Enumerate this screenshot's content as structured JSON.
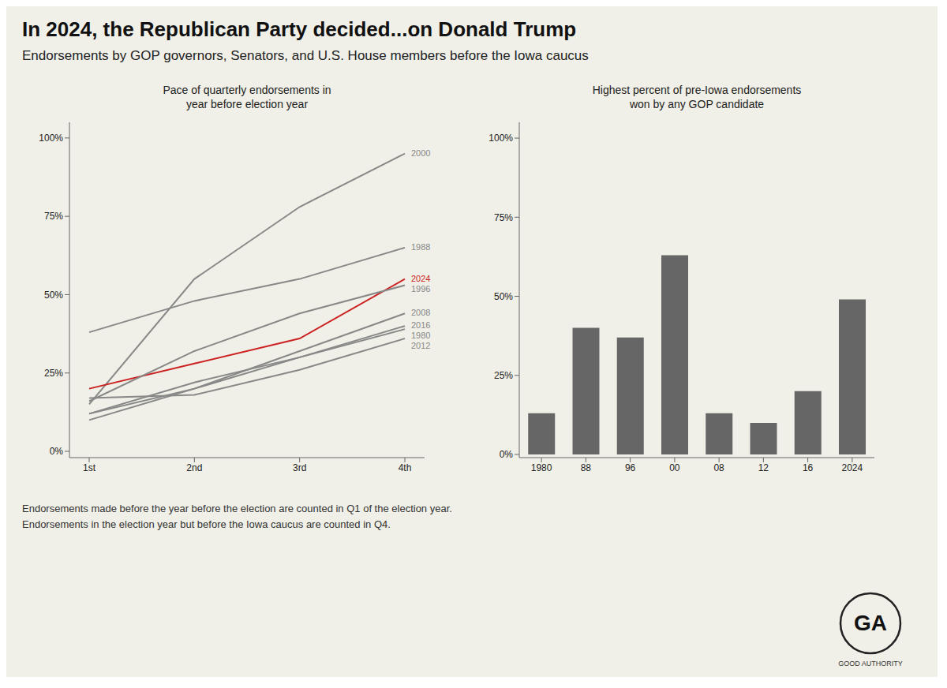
{
  "title": "In 2024, the Republican Party decided...on Donald Trump",
  "subtitle": "Endorsements by GOP governors, Senators, and U.S. House members before the Iowa caucus",
  "footnotes": [
    "Endorsements made before the year before the election are counted in Q1 of the election year.",
    "Endorsements in the election year but before the Iowa caucus are counted in Q4."
  ],
  "annotations": [
    "GA",
    "GOOD AUTHORITY"
  ],
  "chart_data": [
    {
      "type": "line",
      "title": "Pace of quarterly endorsements in\nyear before election year",
      "categories": [
        "1st",
        "2nd",
        "3rd",
        "4th"
      ],
      "series": [
        {
          "name": "2000",
          "color": "#888888",
          "values": [
            0.15,
            0.55,
            0.78,
            0.95
          ]
        },
        {
          "name": "1988",
          "color": "#888888",
          "values": [
            0.38,
            0.48,
            0.55,
            0.65
          ]
        },
        {
          "name": "2024",
          "color": "#cc2222",
          "values": [
            0.2,
            0.28,
            0.36,
            0.55
          ]
        },
        {
          "name": "1996",
          "color": "#888888",
          "values": [
            0.16,
            0.32,
            0.44,
            0.53
          ]
        },
        {
          "name": "2008",
          "color": "#888888",
          "values": [
            0.12,
            0.2,
            0.32,
            0.44
          ]
        },
        {
          "name": "2016",
          "color": "#888888",
          "values": [
            0.1,
            0.2,
            0.3,
            0.4
          ]
        },
        {
          "name": "1980",
          "color": "#888888",
          "values": [
            0.12,
            0.22,
            0.3,
            0.39
          ]
        },
        {
          "name": "2012",
          "color": "#888888",
          "values": [
            0.17,
            0.18,
            0.26,
            0.36
          ]
        }
      ],
      "ylim": [
        -0.02,
        1.05
      ],
      "yticks": [
        {
          "value": 0,
          "label": "0%"
        },
        {
          "value": 0.25,
          "label": "25%"
        },
        {
          "value": 0.5,
          "label": "50%"
        },
        {
          "value": 0.75,
          "label": "75%"
        },
        {
          "value": 1.0,
          "label": "100%"
        }
      ],
      "grid": false
    },
    {
      "type": "bar",
      "title": "Highest percent of pre-Iowa endorsements\nwon by any GOP candidate",
      "categories": [
        "1980",
        "88",
        "96",
        "00",
        "08",
        "12",
        "16",
        "2024"
      ],
      "values": [
        0.13,
        0.4,
        0.37,
        0.63,
        0.13,
        0.1,
        0.2,
        0.49
      ],
      "color": "#666666",
      "ylim": [
        -0.01,
        1.05
      ],
      "yticks": [
        {
          "value": 0,
          "label": "0%"
        },
        {
          "value": 0.25,
          "label": "25%"
        },
        {
          "value": 0.5,
          "label": "50%"
        },
        {
          "value": 0.75,
          "label": "75%"
        },
        {
          "value": 1.0,
          "label": "100%"
        }
      ],
      "grid": false
    }
  ]
}
